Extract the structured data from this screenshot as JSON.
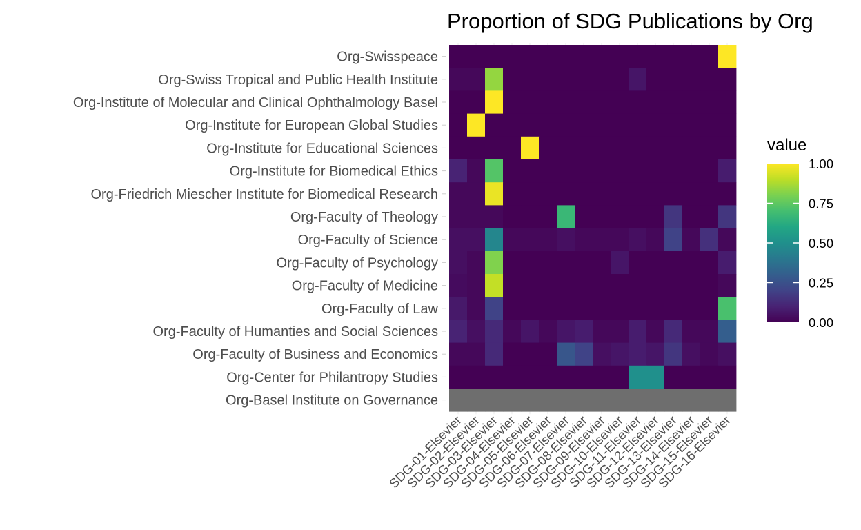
{
  "chart_data": {
    "type": "heatmap",
    "title": "Proportion of SDG Publications by Org",
    "xlabel": "",
    "ylabel": "",
    "x_categories": [
      "SDG-01-Elsevier",
      "SDG-02-Elsevier",
      "SDG-03-Elsevier",
      "SDG-04-Elsevier",
      "SDG-05-Elsevier",
      "SDG-06-Elsevier",
      "SDG-07-Elsevier",
      "SDG-08-Elsevier",
      "SDG-09-Elsevier",
      "SDG-10-Elsevier",
      "SDG-11-Elsevier",
      "SDG-12-Elsevier",
      "SDG-13-Elsevier",
      "SDG-14-Elsevier",
      "SDG-15-Elsevier",
      "SDG-16-Elsevier"
    ],
    "y_categories": [
      "Org-Swisspeace",
      "Org-Swiss Tropical and Public Health Institute",
      "Org-Institute of Molecular and Clinical Ophthalmology Basel",
      "Org-Institute for European Global Studies",
      "Org-Institute for Educational Sciences",
      "Org-Institute for Biomedical Ethics",
      "Org-Friedrich Miescher Institute for Biomedical Research",
      "Org-Faculty of Theology",
      "Org-Faculty of Science",
      "Org-Faculty of Psychology",
      "Org-Faculty of Medicine",
      "Org-Faculty of Law",
      "Org-Faculty of Humanties and Social Sciences",
      "Org-Faculty of Business and Economics",
      "Org-Center for Philantropy Studies",
      "Org-Basel Institute on Governance"
    ],
    "values": [
      [
        0,
        0,
        0,
        0,
        0,
        0,
        0,
        0,
        0,
        0,
        0,
        0,
        0,
        0,
        0,
        1.0
      ],
      [
        0.02,
        0.02,
        0.84,
        0,
        0,
        0,
        0,
        0,
        0,
        0,
        0.06,
        0,
        0,
        0,
        0,
        0
      ],
      [
        0,
        0,
        1.0,
        0,
        0,
        0,
        0,
        0,
        0,
        0,
        0,
        0,
        0,
        0,
        0,
        0
      ],
      [
        0,
        1.0,
        0,
        0,
        0,
        0,
        0,
        0,
        0,
        0,
        0,
        0,
        0,
        0,
        0,
        0
      ],
      [
        0,
        0,
        0,
        0,
        1.0,
        0,
        0,
        0,
        0,
        0,
        0,
        0,
        0,
        0,
        0,
        0
      ],
      [
        0.1,
        0.02,
        0.73,
        0,
        0,
        0,
        0,
        0,
        0,
        0,
        0,
        0,
        0,
        0,
        0,
        0.08
      ],
      [
        0.02,
        0.02,
        0.97,
        0,
        0,
        0,
        0,
        0,
        0,
        0,
        0,
        0,
        0,
        0,
        0,
        0
      ],
      [
        0.02,
        0.02,
        0.02,
        0,
        0,
        0,
        0.67,
        0,
        0,
        0,
        0,
        0,
        0.16,
        0,
        0,
        0.16
      ],
      [
        0.04,
        0.04,
        0.46,
        0.02,
        0.02,
        0.02,
        0.04,
        0.02,
        0.02,
        0.02,
        0.04,
        0.02,
        0.2,
        0.02,
        0.14,
        0.02
      ],
      [
        0.04,
        0.02,
        0.81,
        0,
        0,
        0,
        0,
        0,
        0,
        0.06,
        0,
        0,
        0,
        0,
        0,
        0.08
      ],
      [
        0.03,
        0.02,
        0.91,
        0,
        0,
        0,
        0,
        0,
        0,
        0,
        0,
        0,
        0,
        0,
        0,
        0.02
      ],
      [
        0.07,
        0.02,
        0.2,
        0,
        0,
        0,
        0,
        0,
        0,
        0,
        0,
        0,
        0,
        0,
        0,
        0.71
      ],
      [
        0.1,
        0.04,
        0.12,
        0.02,
        0.06,
        0.02,
        0.06,
        0.08,
        0.02,
        0.02,
        0.08,
        0.02,
        0.12,
        0.02,
        0.02,
        0.3
      ],
      [
        0.02,
        0.02,
        0.12,
        0,
        0,
        0,
        0.27,
        0.2,
        0.04,
        0.06,
        0.08,
        0.06,
        0.16,
        0.04,
        0.02,
        0.04
      ],
      [
        0,
        0,
        0,
        0,
        0,
        0,
        0,
        0,
        0,
        0,
        0.5,
        0.5,
        0,
        0,
        0,
        0
      ],
      [
        null,
        null,
        null,
        null,
        null,
        null,
        null,
        null,
        null,
        null,
        null,
        null,
        null,
        null,
        null,
        null
      ]
    ],
    "na_color": "#6e6e6e",
    "colorscale": "viridis",
    "legend": {
      "title": "value",
      "position": "right",
      "ticks": [
        "1.00",
        "0.75",
        "0.50",
        "0.25",
        "0.00"
      ],
      "tick_values": [
        1.0,
        0.75,
        0.5,
        0.25,
        0.0
      ],
      "range": [
        0,
        1
      ]
    },
    "grid": true
  }
}
